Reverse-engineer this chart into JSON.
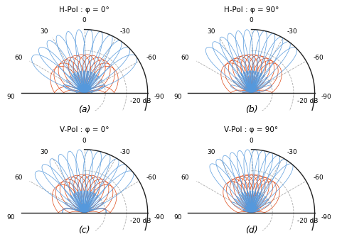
{
  "titles": [
    "H-Pol : φ = 0°",
    "H-Pol : φ = 90°",
    "V-Pol : φ = 0°",
    "V-Pol : φ = 90°"
  ],
  "labels": [
    "(a)",
    "(b)",
    "(c)",
    "(d)"
  ],
  "n_beams_a": 12,
  "n_beams_b": 12,
  "n_beams_c": 12,
  "n_beams_d": 12,
  "db_min": -20,
  "db_max": 0,
  "co_color": "#5599dd",
  "cross_color": "#dd4411",
  "background": "#ffffff",
  "grid_color": "#999999",
  "arc_color": "#222222",
  "label_fontsize": 6.5,
  "title_fontsize": 7.5,
  "subplot_label_fontsize": 9,
  "beam_spread_a": 55,
  "beam_spread_b": 45,
  "beam_spread_c": 50,
  "beam_spread_d": 40,
  "n_el": 12
}
